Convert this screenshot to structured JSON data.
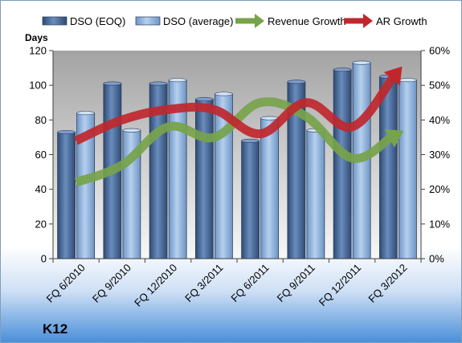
{
  "chart_data": {
    "type": "bar",
    "title": "K12",
    "ylabel": "Days",
    "categories": [
      "FQ 6/2010",
      "FQ 9/2010",
      "FQ 12/2010",
      "FQ 3/2011",
      "FQ 6/2011",
      "FQ 9/2011",
      "FQ 12/2011",
      "FQ 3/2012"
    ],
    "ylim": [
      0,
      120
    ],
    "y_ticks": [
      0,
      20,
      40,
      60,
      80,
      100,
      120
    ],
    "y2lim": [
      0,
      0.6
    ],
    "y2_ticks": [
      "0%",
      "10%",
      "20%",
      "30%",
      "40%",
      "50%",
      "60%"
    ],
    "grid": false,
    "legend_position": "top",
    "series": [
      {
        "name": "DSO (EOQ)",
        "type": "bar",
        "axis": "left",
        "color": "#4f6f9c",
        "values": [
          73,
          101,
          101,
          92,
          68,
          102,
          109,
          105
        ]
      },
      {
        "name": "DSO (average)",
        "type": "bar",
        "axis": "left",
        "color": "#9bbbe3",
        "values": [
          84,
          74,
          103,
          95,
          81,
          74,
          113,
          103
        ]
      },
      {
        "name": "Revenue Growth",
        "type": "line",
        "axis": "right",
        "color": "#77a34a",
        "values": [
          0.22,
          0.27,
          0.38,
          0.35,
          0.45,
          0.41,
          0.29,
          0.36
        ]
      },
      {
        "name": "AR Growth",
        "type": "line",
        "axis": "right",
        "color": "#c0272d",
        "values": [
          0.34,
          0.4,
          0.43,
          0.43,
          0.36,
          0.45,
          0.38,
          0.54
        ]
      }
    ]
  }
}
